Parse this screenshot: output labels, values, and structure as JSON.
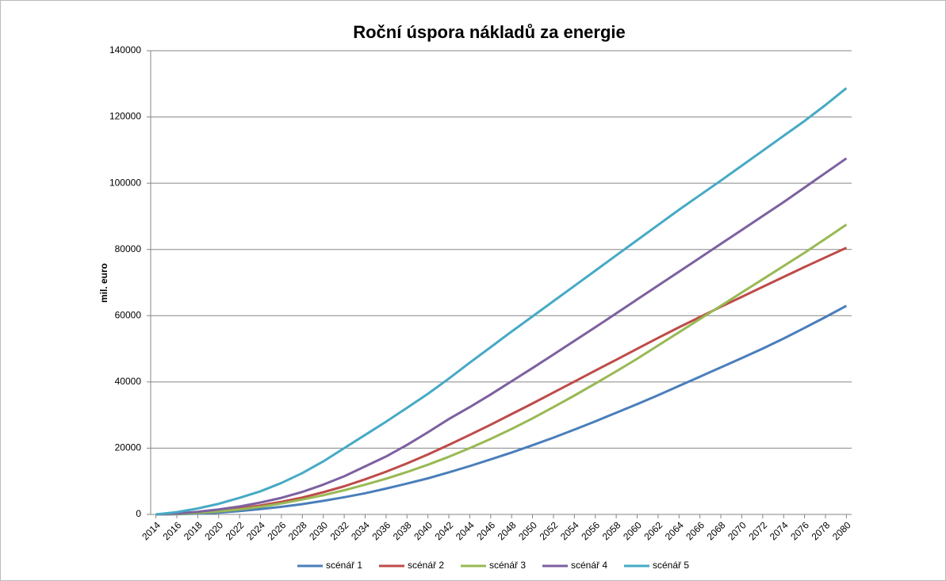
{
  "chart_data": {
    "type": "line",
    "title": "Roční úspora nákladů za energie",
    "ylabel": "mil. euro",
    "x": [
      2014,
      2016,
      2018,
      2020,
      2022,
      2024,
      2026,
      2028,
      2030,
      2032,
      2034,
      2036,
      2038,
      2040,
      2042,
      2044,
      2046,
      2048,
      2050,
      2052,
      2054,
      2056,
      2058,
      2060,
      2062,
      2064,
      2066,
      2068,
      2070,
      2072,
      2074,
      2076,
      2078,
      2080
    ],
    "xlim": [
      2013.5,
      2080.5
    ],
    "xticks": [
      2014,
      2016,
      2018,
      2020,
      2022,
      2024,
      2026,
      2028,
      2030,
      2032,
      2034,
      2036,
      2038,
      2040,
      2042,
      2044,
      2046,
      2048,
      2050,
      2052,
      2054,
      2056,
      2058,
      2060,
      2062,
      2064,
      2066,
      2068,
      2070,
      2072,
      2074,
      2076,
      2078,
      2080
    ],
    "ylim": [
      0,
      140000
    ],
    "yticks": [
      0,
      20000,
      40000,
      60000,
      80000,
      100000,
      120000,
      140000
    ],
    "grid": true,
    "legend": "bottom",
    "series": [
      {
        "name": "scénář 1",
        "color": "#4a7ebb",
        "values": [
          0,
          80,
          250,
          550,
          1000,
          1600,
          2300,
          3100,
          4100,
          5200,
          6400,
          7800,
          9300,
          10900,
          12700,
          14600,
          16600,
          18700,
          20900,
          23200,
          25600,
          28100,
          30700,
          33300,
          36000,
          38800,
          41600,
          44400,
          47200,
          50100,
          53100,
          56300,
          59600,
          63000
        ]
      },
      {
        "name": "scénář 2",
        "color": "#be4b48",
        "values": [
          0,
          200,
          600,
          1100,
          1800,
          2700,
          3800,
          5100,
          6700,
          8500,
          10600,
          12900,
          15400,
          18100,
          21000,
          24000,
          27100,
          30300,
          33500,
          36800,
          40100,
          43400,
          46700,
          50000,
          53300,
          56500,
          59600,
          62700,
          65700,
          68700,
          71700,
          74700,
          77600,
          80500
        ]
      },
      {
        "name": "scénář 3",
        "color": "#98b954",
        "values": [
          0,
          150,
          450,
          900,
          1500,
          2300,
          3300,
          4500,
          5800,
          7300,
          9000,
          10800,
          12800,
          15000,
          17400,
          20000,
          22800,
          25800,
          29000,
          32400,
          35900,
          39500,
          43200,
          47000,
          51000,
          55000,
          59000,
          63000,
          67000,
          71000,
          75000,
          79000,
          83200,
          87500
        ]
      },
      {
        "name": "scénář 4",
        "color": "#7d60a0",
        "values": [
          0,
          300,
          800,
          1500,
          2400,
          3600,
          5000,
          6800,
          9000,
          11500,
          14500,
          17500,
          21000,
          24800,
          28800,
          32400,
          36200,
          40200,
          44200,
          48300,
          52400,
          56500,
          60700,
          64900,
          69100,
          73300,
          77500,
          81700,
          85900,
          90100,
          94300,
          98700,
          103100,
          107500
        ]
      },
      {
        "name": "scénář 5",
        "color": "#46aac5",
        "values": [
          0,
          700,
          1800,
          3200,
          5000,
          7000,
          9500,
          12500,
          16000,
          20000,
          24000,
          28000,
          32200,
          36400,
          41000,
          45800,
          50500,
          55200,
          59800,
          64400,
          69000,
          73600,
          78200,
          82800,
          87400,
          92000,
          96400,
          100800,
          105300,
          109800,
          114300,
          118800,
          123600,
          128700
        ]
      }
    ]
  }
}
